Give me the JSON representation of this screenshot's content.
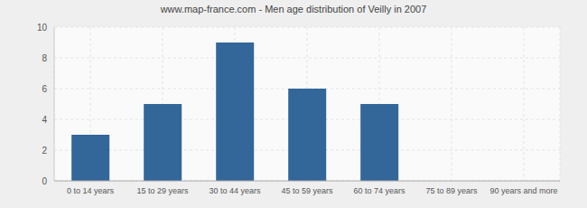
{
  "chart_data": {
    "type": "bar",
    "title": "www.map-france.com - Men age distribution of Veilly in 2007",
    "categories": [
      "0 to 14 years",
      "15 to 29 years",
      "30 to 44 years",
      "45 to 59 years",
      "60 to 74 years",
      "75 to 89 years",
      "90 years and more"
    ],
    "values": [
      3,
      5,
      9,
      6,
      5,
      0,
      0
    ],
    "color": "#336699",
    "ylim": [
      0,
      10
    ],
    "yticks": [
      0,
      2,
      4,
      6,
      8,
      10
    ],
    "grid": true
  }
}
